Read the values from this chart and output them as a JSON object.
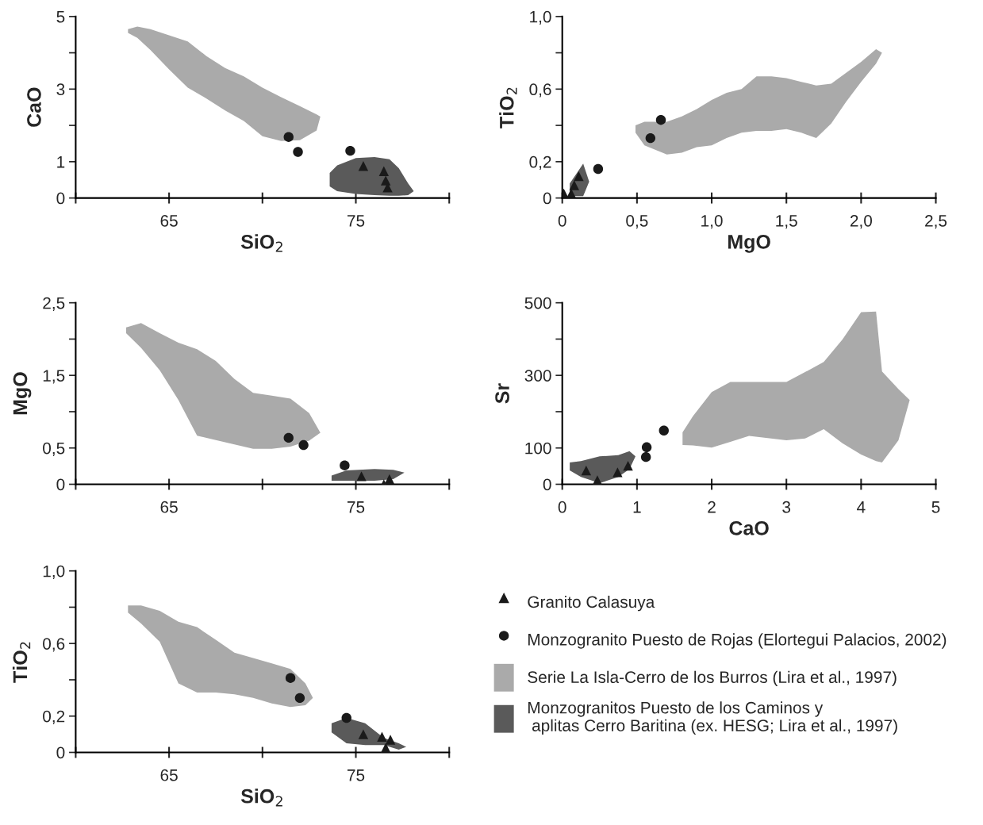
{
  "chart_data": [
    {
      "type": "scatter",
      "xlabel": "SiO$_{2}$",
      "ylabel": "CaO",
      "xlim": [
        60,
        80
      ],
      "xticks": [
        {
          "value": 60,
          "label": null
        },
        65,
        {
          "value": 70,
          "label": null
        },
        75,
        {
          "value": 80,
          "label": null
        }
      ],
      "ylim": [
        0,
        5
      ],
      "yticks": [
        0,
        1,
        {
          "value": 2,
          "label": null
        },
        3,
        {
          "value": 4,
          "label": null
        },
        5
      ],
      "series": [
        {
          "type": "area",
          "color": "#aaaaaa",
          "x": [
            62.8,
            63.3,
            64.0,
            65.0,
            66.0,
            67.0,
            68.0,
            69.0,
            70.0,
            71.0,
            72.0,
            72.9,
            73.1,
            72.9,
            72.0,
            71.0,
            70.0,
            69.0,
            68.0,
            67.0,
            66.0,
            65.0,
            64.0,
            63.3,
            62.8
          ],
          "values": [
            4.65,
            4.72,
            4.65,
            4.48,
            4.31,
            3.91,
            3.58,
            3.35,
            3.04,
            2.78,
            2.53,
            2.3,
            2.24,
            1.86,
            1.59,
            1.57,
            1.7,
            2.12,
            2.41,
            2.74,
            3.04,
            3.54,
            4.08,
            4.41,
            4.55
          ]
        },
        {
          "type": "area",
          "color": "#5a5a5a",
          "x": [
            73.6,
            74.0,
            75.0,
            76.0,
            76.8,
            77.3,
            77.8,
            78.1,
            77.8,
            77.3,
            76.8,
            76.0,
            75.0,
            74.0,
            73.6
          ],
          "values": [
            0.69,
            0.9,
            1.1,
            1.13,
            1.07,
            0.82,
            0.4,
            0.19,
            0.08,
            0.06,
            0.06,
            0.08,
            0.11,
            0.19,
            0.32
          ]
        },
        {
          "marker": "circle",
          "color": "#1a1a1a",
          "x": [
            71.4,
            71.9,
            74.7
          ],
          "values": [
            1.68,
            1.27,
            1.3
          ]
        },
        {
          "marker": "triangle",
          "color": "#1a1a1a",
          "x": [
            75.4,
            76.5,
            76.6,
            76.7
          ],
          "values": [
            0.88,
            0.74,
            0.48,
            0.29
          ]
        }
      ]
    },
    {
      "type": "scatter",
      "xlabel": "MgO",
      "ylabel": "TiO$_{2}$",
      "xlim": [
        0,
        2.5
      ],
      "xticks": [
        0,
        {
          "value": 0.5,
          "label": "0,5"
        },
        {
          "value": 1.0,
          "label": "1,0"
        },
        {
          "value": 1.5,
          "label": "1,5"
        },
        {
          "value": 2.0,
          "label": "2,0"
        },
        {
          "value": 2.5,
          "label": "2,5"
        }
      ],
      "ylim": [
        0,
        1.0
      ],
      "yticks": [
        0,
        {
          "value": 0.2,
          "label": "0,2"
        },
        {
          "value": 0.4,
          "label": null
        },
        {
          "value": 0.6,
          "label": "0,6"
        },
        {
          "value": 0.8,
          "label": null
        },
        {
          "value": 1.0,
          "label": "1,0"
        }
      ],
      "series": [
        {
          "type": "area",
          "color": "#aaaaaa",
          "x": [
            0.49,
            0.55,
            0.7,
            0.8,
            0.9,
            1.0,
            1.1,
            1.2,
            1.3,
            1.4,
            1.5,
            1.6,
            1.7,
            1.8,
            1.9,
            2.0,
            2.1,
            2.14,
            2.1,
            2.0,
            1.9,
            1.8,
            1.7,
            1.6,
            1.5,
            1.4,
            1.3,
            1.2,
            1.1,
            1.0,
            0.9,
            0.8,
            0.7,
            0.55,
            0.49
          ],
          "values": [
            0.4,
            0.42,
            0.42,
            0.45,
            0.49,
            0.54,
            0.58,
            0.6,
            0.67,
            0.67,
            0.66,
            0.64,
            0.62,
            0.63,
            0.69,
            0.75,
            0.82,
            0.8,
            0.74,
            0.64,
            0.53,
            0.41,
            0.33,
            0.36,
            0.38,
            0.37,
            0.37,
            0.36,
            0.33,
            0.29,
            0.28,
            0.25,
            0.24,
            0.29,
            0.36
          ]
        },
        {
          "type": "area",
          "color": "#5a5a5a",
          "x": [
            0.05,
            0.1,
            0.14,
            0.18,
            0.14,
            0.1,
            0.05
          ],
          "values": [
            0.08,
            0.14,
            0.19,
            0.09,
            0.01,
            0.01,
            0.01
          ]
        },
        {
          "marker": "circle",
          "color": "#1a1a1a",
          "x": [
            0.59,
            0.66,
            0.24
          ],
          "values": [
            0.33,
            0.43,
            0.16
          ]
        },
        {
          "marker": "triangle",
          "color": "#1a1a1a",
          "x": [
            0.01,
            0.06,
            0.08,
            0.11
          ],
          "values": [
            0.025,
            0.025,
            0.07,
            0.12
          ]
        }
      ]
    },
    {
      "type": "scatter",
      "ylabel": "MgO",
      "xlim": [
        60,
        80
      ],
      "xticks": [
        {
          "value": 60,
          "label": null
        },
        65,
        {
          "value": 70,
          "label": null
        },
        75,
        {
          "value": 80,
          "label": null
        }
      ],
      "ylim": [
        0,
        2.5
      ],
      "yticks": [
        0,
        {
          "value": 0.5,
          "label": "0,5"
        },
        {
          "value": 1.0,
          "label": null
        },
        {
          "value": 1.5,
          "label": "1,5"
        },
        {
          "value": 2.0,
          "label": null
        },
        {
          "value": 2.5,
          "label": "2,5"
        }
      ],
      "series": [
        {
          "type": "area",
          "color": "#aaaaaa",
          "x": [
            62.7,
            63.5,
            64.5,
            65.5,
            66.5,
            67.5,
            68.5,
            69.5,
            70.5,
            71.5,
            72.5,
            73.1,
            72.5,
            71.5,
            70.5,
            69.5,
            68.5,
            67.5,
            66.5,
            65.5,
            64.5,
            63.5,
            62.7
          ],
          "values": [
            2.16,
            2.22,
            2.08,
            1.95,
            1.86,
            1.7,
            1.45,
            1.26,
            1.22,
            1.18,
            0.98,
            0.71,
            0.6,
            0.52,
            0.49,
            0.49,
            0.55,
            0.61,
            0.67,
            1.16,
            1.57,
            1.88,
            2.08
          ]
        },
        {
          "type": "area",
          "color": "#5a5a5a",
          "x": [
            73.7,
            74.5,
            76.0,
            77.0,
            77.6,
            77.0,
            76.0,
            74.5,
            73.7
          ],
          "values": [
            0.12,
            0.19,
            0.21,
            0.2,
            0.16,
            0.07,
            0.05,
            0.05,
            0.05
          ]
        },
        {
          "marker": "circle",
          "color": "#1a1a1a",
          "x": [
            71.4,
            72.2,
            74.4
          ],
          "values": [
            0.64,
            0.54,
            0.26
          ]
        },
        {
          "marker": "triangle",
          "color": "#1a1a1a",
          "x": [
            75.3,
            76.5,
            76.8
          ],
          "values": [
            0.11,
            0.0,
            0.07
          ]
        }
      ]
    },
    {
      "type": "scatter",
      "xlabel": "CaO",
      "ylabel": "Sr",
      "xlim": [
        0,
        5
      ],
      "xticks": [
        0,
        1,
        2,
        3,
        4,
        5
      ],
      "ylim": [
        0,
        500
      ],
      "yticks": [
        0,
        100,
        {
          "value": 200,
          "label": null
        },
        300,
        {
          "value": 400,
          "label": null
        },
        500
      ],
      "series": [
        {
          "type": "area",
          "color": "#aaaaaa",
          "x": [
            1.61,
            1.75,
            2.0,
            2.25,
            2.5,
            3.0,
            3.25,
            3.5,
            3.75,
            4.0,
            4.2,
            4.28,
            4.5,
            4.65,
            4.5,
            4.28,
            4.2,
            4.0,
            3.75,
            3.5,
            3.25,
            3.0,
            2.5,
            2.25,
            2.0,
            1.75,
            1.61
          ],
          "values": [
            143,
            188,
            254,
            282,
            282,
            282,
            309,
            337,
            399,
            474,
            476,
            311,
            262,
            232,
            121,
            60,
            64,
            82,
            113,
            152,
            126,
            121,
            133,
            117,
            101,
            107,
            108
          ]
        },
        {
          "type": "area",
          "color": "#5a5a5a",
          "x": [
            0.1,
            0.25,
            0.5,
            0.75,
            0.9,
            0.98,
            0.9,
            0.75,
            0.5,
            0.25,
            0.1
          ],
          "values": [
            60,
            64,
            77,
            80,
            91,
            77,
            42,
            20,
            3,
            20,
            38
          ]
        },
        {
          "marker": "circle",
          "color": "#1a1a1a",
          "x": [
            1.12,
            1.13,
            1.36
          ],
          "values": [
            75,
            102,
            148
          ]
        },
        {
          "marker": "triangle",
          "color": "#1a1a1a",
          "x": [
            0.32,
            0.47,
            0.74,
            0.88
          ],
          "values": [
            38,
            11,
            33,
            51
          ]
        }
      ]
    },
    {
      "type": "scatter",
      "xlabel": "SiO$_{2}$",
      "ylabel": "TiO$_{2}$",
      "legend": "right",
      "xlim": [
        60,
        80
      ],
      "xticks": [
        {
          "value": 60,
          "label": null
        },
        65,
        {
          "value": 70,
          "label": null
        },
        75,
        {
          "value": 80,
          "label": null
        }
      ],
      "ylim": [
        0,
        1.0
      ],
      "yticks": [
        0,
        {
          "value": 0.2,
          "label": "0,2"
        },
        {
          "value": 0.4,
          "label": null
        },
        {
          "value": 0.6,
          "label": "0,6"
        },
        {
          "value": 0.8,
          "label": null
        },
        {
          "value": 1.0,
          "label": "1,0"
        }
      ],
      "series": [
        {
          "marker": "triangle",
          "color": "#1a1a1a",
          "name": "Granito Calasuya",
          "x": [
            75.4,
            76.4,
            76.85,
            76.6
          ],
          "values": [
            0.1,
            0.086,
            0.07,
            0.025
          ]
        },
        {
          "marker": "circle",
          "color": "#1a1a1a",
          "name": "Monzogranito Puesto de Rojas (Elortegui Palacios, 2002)",
          "x": [
            71.5,
            72.0,
            74.5
          ],
          "values": [
            0.41,
            0.3,
            0.19
          ]
        },
        {
          "type": "area",
          "color": "#aaaaaa",
          "name": "Serie La Isla-Cerro de los Burros (Lira et al., 1997)",
          "x": [
            62.8,
            63.5,
            64.5,
            65.5,
            66.5,
            67.5,
            68.5,
            69.5,
            70.5,
            71.5,
            72.3,
            72.7,
            72.3,
            71.5,
            70.5,
            69.5,
            68.5,
            67.5,
            66.5,
            65.5,
            64.5,
            63.5,
            62.8
          ],
          "values": [
            0.81,
            0.81,
            0.78,
            0.72,
            0.69,
            0.62,
            0.55,
            0.52,
            0.49,
            0.46,
            0.38,
            0.3,
            0.26,
            0.25,
            0.27,
            0.3,
            0.32,
            0.33,
            0.33,
            0.38,
            0.61,
            0.71,
            0.77
          ]
        },
        {
          "type": "area",
          "color": "#5a5a5a",
          "name": "Monzogranitos Puesto de los Caminos y\n aplitas Cerro Baritina (ex. HESG; Lira et al., 1997)",
          "x": [
            73.7,
            74.5,
            75.5,
            76.5,
            77.3,
            77.7,
            77.3,
            76.5,
            75.5,
            74.5,
            73.7
          ],
          "values": [
            0.16,
            0.19,
            0.16,
            0.08,
            0.05,
            0.03,
            0.015,
            0.04,
            0.04,
            0.05,
            0.11
          ]
        }
      ]
    }
  ]
}
